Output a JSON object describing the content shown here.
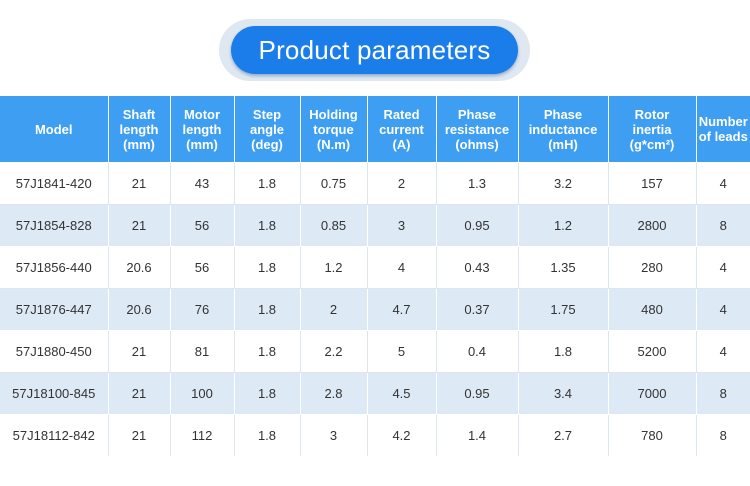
{
  "title": "Product parameters",
  "colors": {
    "accent": "#1a7dea",
    "header": "#3d9ef2",
    "row_alt": "#dde9f5"
  },
  "columns": [
    [
      "Model"
    ],
    [
      "Shaft",
      "length",
      "(mm)"
    ],
    [
      "Motor",
      "length",
      "(mm)"
    ],
    [
      "Step",
      "angle",
      "(deg)"
    ],
    [
      "Holding",
      "torque",
      "(N.m)"
    ],
    [
      "Rated",
      "current",
      "(A)"
    ],
    [
      "Phase",
      "resistance",
      "(ohms)"
    ],
    [
      "Phase",
      "inductance",
      "(mH)"
    ],
    [
      "Rotor",
      "inertia",
      "(g*cm²)"
    ],
    [
      "Number",
      "of leads"
    ]
  ],
  "rows": [
    [
      "57J1841-420",
      "21",
      "43",
      "1.8",
      "0.75",
      "2",
      "1.3",
      "3.2",
      "157",
      "4"
    ],
    [
      "57J1854-828",
      "21",
      "56",
      "1.8",
      "0.85",
      "3",
      "0.95",
      "1.2",
      "2800",
      "8"
    ],
    [
      "57J1856-440",
      "20.6",
      "56",
      "1.8",
      "1.2",
      "4",
      "0.43",
      "1.35",
      "280",
      "4"
    ],
    [
      "57J1876-447",
      "20.6",
      "76",
      "1.8",
      "2",
      "4.7",
      "0.37",
      "1.75",
      "480",
      "4"
    ],
    [
      "57J1880-450",
      "21",
      "81",
      "1.8",
      "2.2",
      "5",
      "0.4",
      "1.8",
      "5200",
      "4"
    ],
    [
      "57J18100-845",
      "21",
      "100",
      "1.8",
      "2.8",
      "4.5",
      "0.95",
      "3.4",
      "7000",
      "8"
    ],
    [
      "57J18112-842",
      "21",
      "112",
      "1.8",
      "3",
      "4.2",
      "1.4",
      "2.7",
      "780",
      "8"
    ]
  ]
}
